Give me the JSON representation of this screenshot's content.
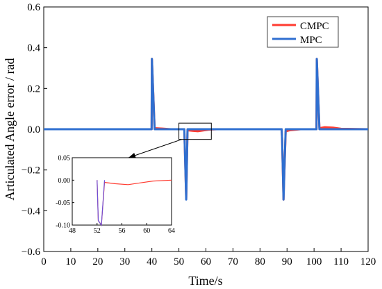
{
  "chart_data": {
    "type": "line",
    "title": "",
    "xlabel": "Time/s",
    "ylabel": "Articulated Angle error / rad",
    "xlim": [
      0,
      120
    ],
    "ylim": [
      -0.6,
      0.6
    ],
    "x_ticks": [
      0,
      10,
      20,
      30,
      40,
      50,
      60,
      70,
      80,
      90,
      100,
      110,
      120
    ],
    "y_ticks": [
      -0.6,
      -0.4,
      -0.2,
      0.0,
      0.2,
      0.4,
      0.6
    ],
    "x_tick_labels": [
      "0",
      "10",
      "20",
      "30",
      "40",
      "50",
      "60",
      "70",
      "80",
      "90",
      "100",
      "110",
      "120"
    ],
    "y_tick_labels": [
      "−0.6",
      "−0.4",
      "−0.2",
      "0.0",
      "0.2",
      "0.4",
      "0.6"
    ],
    "grid": false,
    "legend_position": "top-right",
    "series": [
      {
        "name": "CMPC",
        "color": "#ff3b30",
        "points": [
          [
            0,
            0
          ],
          [
            39.9,
            0
          ],
          [
            40,
            0.345
          ],
          [
            41,
            0.005
          ],
          [
            44,
            0.003
          ],
          [
            47,
            0
          ],
          [
            52,
            0
          ],
          [
            52.2,
            -0.09
          ],
          [
            52.7,
            -0.34
          ],
          [
            53.2,
            -0.005
          ],
          [
            55,
            -0.008
          ],
          [
            57,
            -0.01
          ],
          [
            59,
            -0.006
          ],
          [
            61,
            -0.002
          ],
          [
            64,
            0
          ],
          [
            88,
            0
          ],
          [
            88.2,
            -0.05
          ],
          [
            88.7,
            -0.345
          ],
          [
            89.5,
            -0.01
          ],
          [
            91,
            -0.005
          ],
          [
            95,
            0
          ],
          [
            100.9,
            0
          ],
          [
            101,
            0.345
          ],
          [
            102,
            0.005
          ],
          [
            104,
            0.01
          ],
          [
            107,
            0.008
          ],
          [
            110,
            0.002
          ],
          [
            120,
            0
          ]
        ]
      },
      {
        "name": "MPC",
        "color": "#2f6fd0",
        "points": [
          [
            0,
            0
          ],
          [
            39.9,
            0
          ],
          [
            40,
            0.345
          ],
          [
            41,
            0
          ],
          [
            52,
            0
          ],
          [
            52.2,
            -0.09
          ],
          [
            52.7,
            -0.345
          ],
          [
            53.2,
            0
          ],
          [
            88,
            0
          ],
          [
            88.2,
            -0.05
          ],
          [
            88.7,
            -0.345
          ],
          [
            89.5,
            0
          ],
          [
            100.9,
            0
          ],
          [
            101,
            0.345
          ],
          [
            102,
            0
          ],
          [
            120,
            0
          ]
        ]
      }
    ],
    "inset": {
      "xlim": [
        48,
        64
      ],
      "ylim": [
        -0.1,
        0.05
      ],
      "x_ticks": [
        48,
        52,
        56,
        60,
        64
      ],
      "y_ticks": [
        -0.1,
        -0.05,
        0.0,
        0.05
      ],
      "x_tick_labels": [
        "48",
        "52",
        "56",
        "60",
        "64"
      ],
      "y_tick_labels": [
        "-0.10",
        "-0.05",
        "0.00",
        "0.05"
      ],
      "zoom_box": {
        "x": [
          50,
          62
        ],
        "y": [
          -0.05,
          0.03
        ]
      }
    }
  },
  "legend": {
    "items": [
      {
        "label": "CMPC",
        "color": "#ff3b30"
      },
      {
        "label": "MPC",
        "color": "#2f6fd0"
      }
    ]
  }
}
